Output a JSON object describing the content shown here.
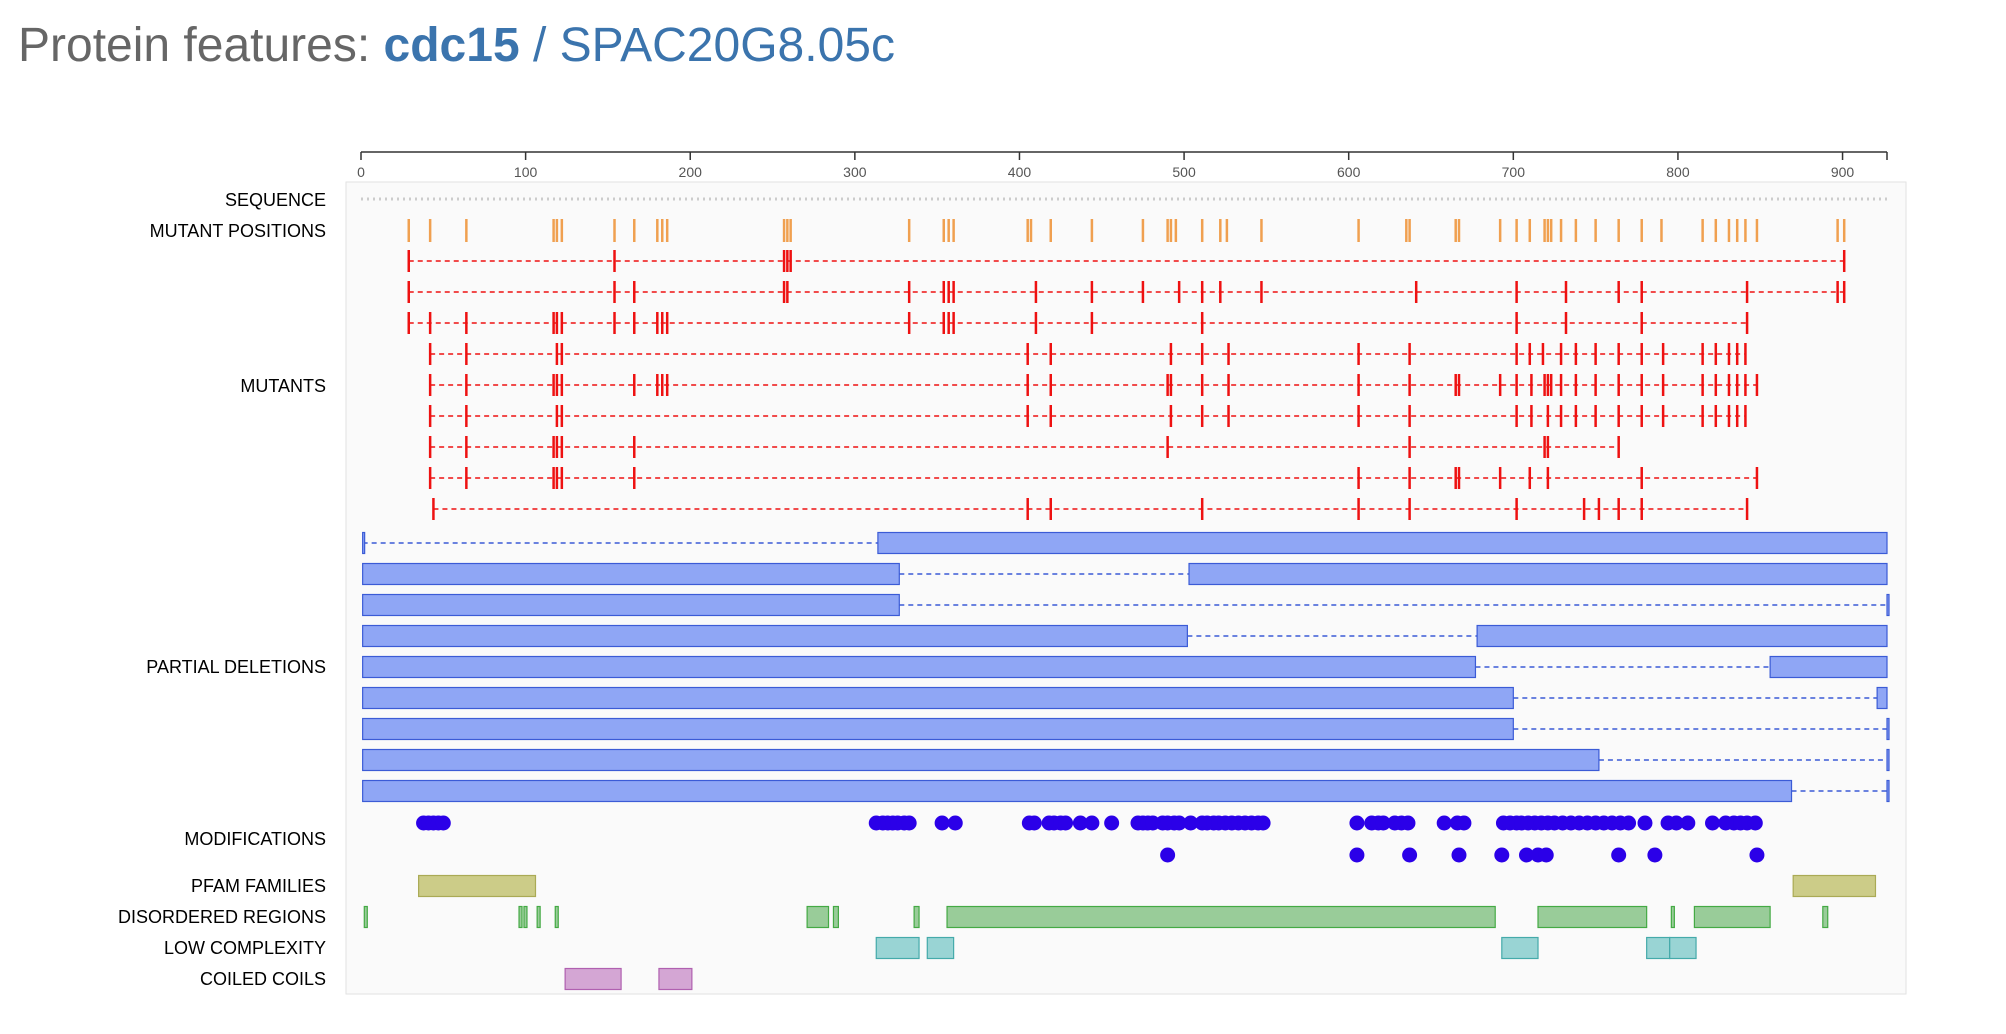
{
  "page": {
    "title_prefix": "Protein features: ",
    "gene_name": "cdc15",
    "separator": " / ",
    "systematic_id": "SPAC20G8.05c"
  },
  "chart_data": {
    "type": "protein-feature-track",
    "x_range": [
      0,
      927
    ],
    "ticks": [
      0,
      100,
      200,
      300,
      400,
      500,
      600,
      700,
      800,
      900
    ],
    "track_labels": {
      "sequence": "SEQUENCE",
      "mutant_positions": "MUTANT POSITIONS",
      "mutants": "MUTANTS",
      "partial_deletions": "PARTIAL DELETIONS",
      "modifications": "MODIFICATIONS",
      "pfam": "PFAM FAMILIES",
      "disordered": "DISORDERED REGIONS",
      "low_complexity": "LOW COMPLEXITY",
      "coiled_coils": "COILED COILS"
    },
    "colors": {
      "mutant_positions": "#f0a050",
      "mutants": "#ee1111",
      "deletion_fill": "#8fa6f5",
      "deletion_stroke": "#3b5bd6",
      "modifications": "#2b00e8",
      "pfam_fill": "#cccc88",
      "pfam_stroke": "#aaaa55",
      "disordered_fill": "#99cc99",
      "disordered_stroke": "#44aa44",
      "low_complexity_fill": "#99d4d4",
      "low_complexity_stroke": "#44aaaa",
      "coiled_fill": "#d4a6d4",
      "coiled_stroke": "#b060b0",
      "sequence_dots": "#cccccc"
    },
    "mutant_positions": [
      29,
      42,
      64,
      117,
      119,
      122,
      154,
      166,
      180,
      183,
      186,
      257,
      259,
      261,
      333,
      354,
      357,
      360,
      405,
      407,
      419,
      444,
      475,
      490,
      492,
      495,
      511,
      522,
      526,
      547,
      606,
      635,
      637,
      665,
      667,
      692,
      702,
      710,
      719,
      721,
      723,
      729,
      738,
      750,
      764,
      778,
      790,
      815,
      823,
      831,
      836,
      841,
      848,
      897,
      901
    ],
    "mutants": [
      [
        29,
        154,
        257,
        259,
        261,
        901
      ],
      [
        29,
        154,
        166,
        257,
        259,
        333,
        354,
        357,
        360,
        410,
        444,
        475,
        497,
        511,
        522,
        547,
        641,
        702,
        732,
        764,
        778,
        842,
        897,
        901
      ],
      [
        29,
        42,
        64,
        117,
        119,
        122,
        154,
        166,
        180,
        183,
        186,
        333,
        354,
        357,
        360,
        410,
        444,
        511,
        702,
        732,
        778,
        842
      ],
      [
        42,
        64,
        119,
        122,
        405,
        419,
        492,
        511,
        527,
        606,
        637,
        702,
        710,
        718,
        729,
        738,
        750,
        764,
        778,
        791,
        815,
        823,
        831,
        836,
        841
      ],
      [
        42,
        64,
        117,
        119,
        122,
        166,
        180,
        183,
        186,
        405,
        419,
        490,
        492,
        511,
        527,
        606,
        637,
        665,
        667,
        692,
        702,
        711,
        719,
        721,
        723,
        729,
        738,
        750,
        764,
        778,
        791,
        815,
        823,
        831,
        836,
        841,
        848
      ],
      [
        42,
        64,
        119,
        122,
        405,
        419,
        492,
        511,
        527,
        606,
        637,
        702,
        711,
        721,
        729,
        738,
        750,
        764,
        778,
        791,
        815,
        823,
        831,
        836,
        841
      ],
      [
        42,
        64,
        117,
        119,
        122,
        166,
        490,
        637,
        719,
        721,
        764
      ],
      [
        42,
        64,
        117,
        119,
        122,
        166,
        606,
        637,
        665,
        667,
        692,
        710,
        721,
        778,
        848
      ],
      [
        44,
        405,
        419,
        511,
        606,
        637,
        702,
        743,
        752,
        764,
        778,
        842
      ]
    ],
    "partial_deletions": [
      [
        [
          1,
          1
        ],
        [
          314,
          927
        ]
      ],
      [
        [
          1,
          327
        ],
        [
          503,
          927
        ]
      ],
      [
        [
          1,
          327
        ],
        [
          927,
          927
        ]
      ],
      [
        [
          1,
          502
        ],
        [
          678,
          927
        ]
      ],
      [
        [
          1,
          677
        ],
        [
          856,
          927
        ]
      ],
      [
        [
          1,
          700
        ],
        [
          921,
          927
        ]
      ],
      [
        [
          1,
          700
        ],
        [
          927,
          927
        ]
      ],
      [
        [
          1,
          752
        ],
        [
          927,
          927
        ]
      ],
      [
        [
          1,
          869
        ],
        [
          927,
          927
        ]
      ]
    ],
    "modifications_row1": [
      38,
      41,
      44,
      47,
      50,
      313,
      317,
      320,
      323,
      326,
      330,
      333,
      353,
      361,
      406,
      409,
      418,
      421,
      425,
      428,
      437,
      444,
      456,
      472,
      475,
      478,
      481,
      487,
      490,
      494,
      497,
      504,
      511,
      514,
      518,
      521,
      525,
      529,
      533,
      537,
      541,
      545,
      548,
      605,
      614,
      618,
      621,
      628,
      632,
      636,
      658,
      666,
      670,
      694,
      698,
      702,
      705,
      709,
      713,
      717,
      721,
      725,
      730,
      735,
      740,
      745,
      750,
      755,
      760,
      765,
      770,
      780,
      794,
      799,
      806,
      821,
      829,
      834,
      838,
      842,
      847
    ],
    "modifications_row2": [
      490,
      605,
      637,
      667,
      693,
      708,
      715,
      720,
      764,
      786,
      848
    ],
    "pfam": [
      [
        35,
        106
      ],
      [
        870,
        920
      ]
    ],
    "disordered": [
      [
        2,
        2
      ],
      [
        96,
        96
      ],
      [
        99,
        99
      ],
      [
        107,
        107
      ],
      [
        118,
        118
      ],
      [
        271,
        284
      ],
      [
        287,
        290
      ],
      [
        336,
        339
      ],
      [
        356,
        689
      ],
      [
        715,
        781
      ],
      [
        796,
        796
      ],
      [
        810,
        856
      ],
      [
        888,
        891
      ]
    ],
    "low_complexity": [
      [
        313,
        339
      ],
      [
        344,
        360
      ],
      [
        693,
        715
      ],
      [
        781,
        795
      ],
      [
        795,
        811
      ]
    ],
    "coiled_coils": [
      [
        124,
        158
      ],
      [
        181,
        201
      ]
    ]
  }
}
